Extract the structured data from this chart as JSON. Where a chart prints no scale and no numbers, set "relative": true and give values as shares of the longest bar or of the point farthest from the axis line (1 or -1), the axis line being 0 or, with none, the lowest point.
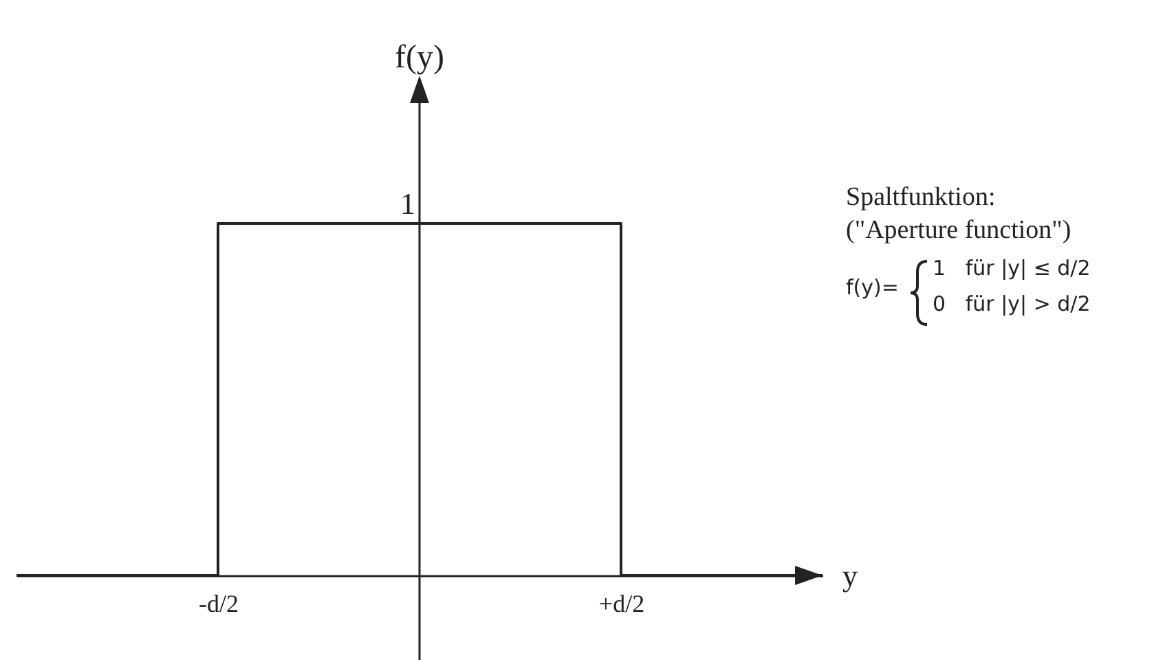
{
  "chart_data": {
    "type": "step",
    "xlabel": "y",
    "ylabel": "f(y)",
    "relative": true,
    "categories": [
      null,
      "-d/2",
      null,
      "+d/2",
      null
    ],
    "series": [
      {
        "color": "#222222",
        "values": [
          0,
          1,
          1,
          0,
          0
        ]
      }
    ],
    "annotations": [
      {
        "text": "1",
        "y": 1
      },
      "Spaltfunktion:",
      "(\"Aperture function\")",
      "f(y)=",
      "1   für |y| ≤ d/2",
      "0   für |y| > d/2"
    ]
  }
}
